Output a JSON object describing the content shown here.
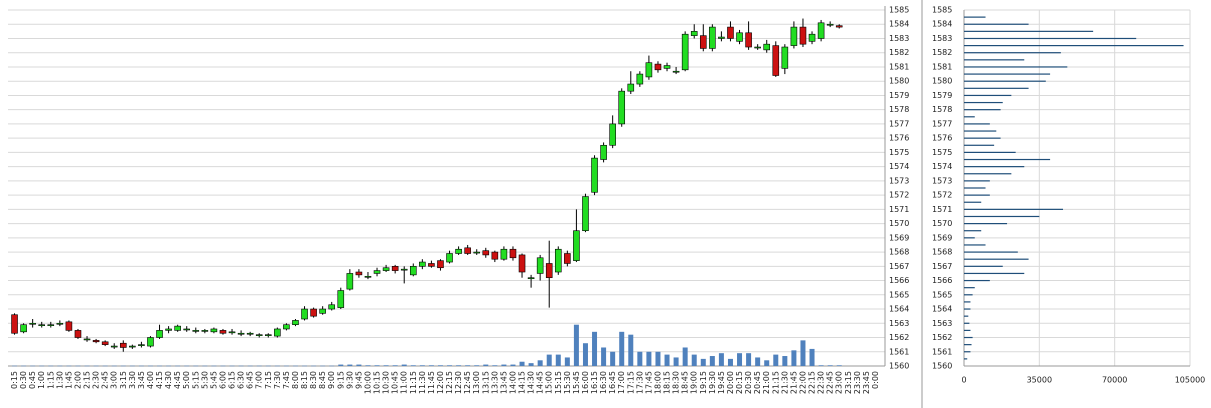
{
  "chart_data": [
    {
      "type": "candlestick",
      "categories": [
        "0:15",
        "0:30",
        "0:45",
        "1:00",
        "1:15",
        "1:30",
        "1:45",
        "2:00",
        "2:15",
        "2:30",
        "2:45",
        "3:00",
        "3:15",
        "3:30",
        "3:45",
        "4:00",
        "4:15",
        "4:30",
        "4:45",
        "5:00",
        "5:15",
        "5:30",
        "5:45",
        "6:00",
        "6:15",
        "6:30",
        "6:45",
        "7:00",
        "7:15",
        "7:30",
        "7:45",
        "8:00",
        "8:15",
        "8:30",
        "8:45",
        "9:00",
        "9:15",
        "9:30",
        "9:45",
        "10:00",
        "10:15",
        "10:30",
        "10:45",
        "11:00",
        "11:15",
        "11:30",
        "11:45",
        "12:00",
        "12:15",
        "12:30",
        "12:45",
        "13:00",
        "13:15",
        "13:30",
        "13:45",
        "14:00",
        "14:15",
        "14:30",
        "14:45",
        "15:00",
        "15:15",
        "15:30",
        "15:45",
        "16:00",
        "16:15",
        "16:30",
        "16:45",
        "17:00",
        "17:15",
        "17:30",
        "17:45",
        "18:00",
        "18:15",
        "18:30",
        "18:45",
        "19:00",
        "19:15",
        "19:30",
        "19:45",
        "20:00",
        "20:15",
        "20:30",
        "20:45",
        "21:00",
        "21:15",
        "21:30",
        "21:45",
        "22:00",
        "22:15",
        "22:30",
        "22:45",
        "23:00",
        "23:15",
        "23:30",
        "23:45",
        "0:00"
      ],
      "open": [
        1563.6,
        1562.4,
        1563.0,
        1562.9,
        1562.9,
        1563.0,
        1563.1,
        1562.5,
        1561.9,
        1561.8,
        1561.7,
        1561.4,
        1561.6,
        1561.4,
        1561.5,
        1561.4,
        1562.0,
        1562.5,
        1562.5,
        1562.6,
        1562.5,
        1562.5,
        1562.4,
        1562.5,
        1562.4,
        1562.3,
        1562.3,
        1562.2,
        1562.2,
        1562.1,
        1562.6,
        1562.9,
        1563.3,
        1564.0,
        1563.7,
        1564.0,
        1564.1,
        1565.4,
        1566.6,
        1566.3,
        1566.5,
        1566.7,
        1567.0,
        1566.8,
        1566.4,
        1567.0,
        1567.2,
        1567.4,
        1567.3,
        1567.9,
        1568.3,
        1568.0,
        1568.1,
        1568.0,
        1567.5,
        1568.2,
        1567.8,
        1566.2,
        1566.5,
        1567.2,
        1566.6,
        1567.9,
        1567.4,
        1569.5,
        1572.2,
        1574.5,
        1575.5,
        1577.0,
        1579.3,
        1579.8,
        1580.3,
        1581.2,
        1580.9,
        1580.7,
        1580.8,
        1583.2,
        1583.2,
        1582.3,
        1583.0,
        1583.8,
        1582.8,
        1583.4,
        1582.4,
        1582.2,
        1582.5,
        1580.9,
        1582.5,
        1583.8,
        1582.8,
        1583.0,
        1584.0,
        1583.9,
        null,
        null,
        null,
        null
      ],
      "high": [
        1563.7,
        1563.0,
        1563.3,
        1563.1,
        1563.1,
        1563.2,
        1563.2,
        1562.6,
        1562.1,
        1561.9,
        1561.8,
        1561.6,
        1561.8,
        1561.5,
        1561.7,
        1562.1,
        1562.9,
        1562.8,
        1562.9,
        1562.8,
        1562.7,
        1562.6,
        1562.7,
        1562.6,
        1562.6,
        1562.5,
        1562.4,
        1562.3,
        1562.3,
        1562.7,
        1563.0,
        1563.3,
        1564.2,
        1564.1,
        1564.2,
        1564.5,
        1565.5,
        1566.8,
        1566.8,
        1566.6,
        1566.9,
        1567.1,
        1567.1,
        1567.0,
        1567.2,
        1567.5,
        1567.4,
        1567.5,
        1568.1,
        1568.4,
        1568.5,
        1568.2,
        1568.3,
        1568.1,
        1568.4,
        1568.4,
        1567.9,
        1566.4,
        1567.8,
        1568.8,
        1568.4,
        1568.1,
        1571.0,
        1572.1,
        1574.8,
        1575.7,
        1577.6,
        1579.5,
        1580.7,
        1580.7,
        1581.8,
        1581.4,
        1581.3,
        1581.0,
        1583.5,
        1584.0,
        1584.0,
        1584.0,
        1583.5,
        1584.2,
        1583.6,
        1584.2,
        1582.6,
        1582.9,
        1582.8,
        1582.6,
        1584.2,
        1584.4,
        1583.5,
        1584.3,
        1584.2,
        1584.0,
        null,
        null,
        null,
        null
      ],
      "low": [
        1562.2,
        1562.3,
        1562.7,
        1562.7,
        1562.7,
        1562.8,
        1562.4,
        1561.9,
        1561.7,
        1561.6,
        1561.4,
        1561.2,
        1561.0,
        1561.2,
        1561.3,
        1561.3,
        1561.9,
        1562.3,
        1562.4,
        1562.4,
        1562.3,
        1562.3,
        1562.3,
        1562.2,
        1562.2,
        1562.1,
        1562.1,
        1562.0,
        1562.0,
        1562.0,
        1562.5,
        1562.8,
        1563.2,
        1563.4,
        1563.6,
        1563.9,
        1564.0,
        1565.3,
        1566.2,
        1566.1,
        1566.3,
        1566.6,
        1566.5,
        1565.8,
        1566.3,
        1566.8,
        1566.9,
        1566.7,
        1567.2,
        1567.8,
        1567.8,
        1567.8,
        1567.6,
        1567.3,
        1567.4,
        1567.4,
        1566.2,
        1565.5,
        1566.0,
        1564.1,
        1566.4,
        1567.0,
        1567.3,
        1569.4,
        1572.0,
        1574.3,
        1575.3,
        1576.8,
        1579.1,
        1579.6,
        1580.1,
        1580.6,
        1580.7,
        1580.5,
        1580.7,
        1583.0,
        1582.1,
        1582.1,
        1582.8,
        1582.8,
        1582.6,
        1582.2,
        1582.2,
        1582.0,
        1580.3,
        1580.5,
        1582.3,
        1582.4,
        1582.6,
        1582.8,
        1583.8,
        1583.7,
        null,
        null,
        null,
        null
      ],
      "close": [
        1562.3,
        1562.9,
        1563.0,
        1562.9,
        1562.9,
        1563.0,
        1562.5,
        1562.0,
        1561.9,
        1561.7,
        1561.5,
        1561.4,
        1561.3,
        1561.4,
        1561.5,
        1562.0,
        1562.5,
        1562.6,
        1562.8,
        1562.6,
        1562.5,
        1562.5,
        1562.6,
        1562.3,
        1562.4,
        1562.3,
        1562.3,
        1562.2,
        1562.2,
        1562.6,
        1562.9,
        1563.2,
        1564.0,
        1563.5,
        1564.0,
        1564.3,
        1565.3,
        1566.5,
        1566.4,
        1566.3,
        1566.7,
        1566.9,
        1566.7,
        1566.8,
        1567.0,
        1567.3,
        1567.0,
        1566.9,
        1567.9,
        1568.2,
        1567.9,
        1568.0,
        1567.8,
        1567.5,
        1568.2,
        1567.6,
        1566.6,
        1566.2,
        1567.6,
        1566.2,
        1568.2,
        1567.2,
        1569.5,
        1571.9,
        1574.6,
        1575.5,
        1577.0,
        1579.3,
        1579.8,
        1580.5,
        1581.3,
        1580.8,
        1581.1,
        1580.7,
        1583.3,
        1583.5,
        1582.3,
        1583.8,
        1583.1,
        1583.0,
        1583.4,
        1582.4,
        1582.4,
        1582.6,
        1580.4,
        1582.4,
        1583.8,
        1582.6,
        1583.3,
        1584.1,
        1584.0,
        1583.8,
        null,
        null,
        null,
        null
      ],
      "volume": [
        0.02,
        0.02,
        0.02,
        0.02,
        0.02,
        0.02,
        0.02,
        0.02,
        0.02,
        0.02,
        0.02,
        0.02,
        0.02,
        0.02,
        0.02,
        0.02,
        0.02,
        0.02,
        0.02,
        0.02,
        0.02,
        0.02,
        0.02,
        0.02,
        0.02,
        0.02,
        0.02,
        0.02,
        0.02,
        0.02,
        0.02,
        0.02,
        0.02,
        0.02,
        0.02,
        0.02,
        0.1,
        0.1,
        0.1,
        0.05,
        0.05,
        0.05,
        0.05,
        0.1,
        0.05,
        0.05,
        0.05,
        0.05,
        0.05,
        0.05,
        0.05,
        0.05,
        0.1,
        0.05,
        0.1,
        0.1,
        0.3,
        0.2,
        0.4,
        0.8,
        0.8,
        0.6,
        2.9,
        1.6,
        2.4,
        1.3,
        1.0,
        2.4,
        2.2,
        1.0,
        1.0,
        1.0,
        0.8,
        0.6,
        1.3,
        0.8,
        0.5,
        0.7,
        0.9,
        0.5,
        0.9,
        0.9,
        0.6,
        0.4,
        0.8,
        0.7,
        1.1,
        1.8,
        1.2,
        0.05,
        0.05,
        0.05,
        null,
        null,
        null,
        null
      ],
      "up_color": "#22dd22",
      "down_color": "#cc1111",
      "volume_color": "#4f81bd",
      "ylim": [
        1560,
        1585
      ],
      "yticks": [
        1560,
        1561,
        1562,
        1563,
        1564,
        1565,
        1566,
        1567,
        1568,
        1569,
        1570,
        1571,
        1572,
        1573,
        1574,
        1575,
        1576,
        1577,
        1578,
        1579,
        1580,
        1581,
        1582,
        1583,
        1584,
        1585
      ],
      "grid": true
    },
    {
      "type": "hbar",
      "y": [
        1584.5,
        1584,
        1583.5,
        1583,
        1582.5,
        1582,
        1581.5,
        1581,
        1580.5,
        1580,
        1579.5,
        1579,
        1578.5,
        1578,
        1577.5,
        1577,
        1576.5,
        1576,
        1575.5,
        1575,
        1574.5,
        1574,
        1573.5,
        1573,
        1572.5,
        1572,
        1571.5,
        1571,
        1570.5,
        1570,
        1569.5,
        1569,
        1568.5,
        1568,
        1567.5,
        1567,
        1566.5,
        1566,
        1565.5,
        1565,
        1564.5,
        1564,
        1563.5,
        1563,
        1562.5,
        1562,
        1561.5,
        1561,
        1560.5
      ],
      "values": [
        10000,
        30000,
        60000,
        80000,
        102000,
        45000,
        28000,
        48000,
        40000,
        38000,
        30000,
        22000,
        18000,
        17000,
        5000,
        12000,
        15000,
        17000,
        14000,
        24000,
        40000,
        28000,
        22000,
        12000,
        10000,
        12000,
        8000,
        46000,
        35000,
        20000,
        8000,
        5000,
        10000,
        25000,
        30000,
        18000,
        28000,
        12000,
        5000,
        4000,
        3000,
        3000,
        2000,
        2500,
        3000,
        4000,
        3500,
        3000,
        1500
      ],
      "color": "#1f4e79",
      "xlim": [
        0,
        105000
      ],
      "xticks": [
        0,
        35000,
        70000,
        105000
      ],
      "ylim": [
        1560,
        1585
      ],
      "yticks": [
        1560,
        1561,
        1562,
        1563,
        1564,
        1565,
        1566,
        1567,
        1568,
        1569,
        1570,
        1571,
        1572,
        1573,
        1574,
        1575,
        1576,
        1577,
        1578,
        1579,
        1580,
        1581,
        1582,
        1583,
        1584,
        1585
      ],
      "grid": true
    }
  ]
}
